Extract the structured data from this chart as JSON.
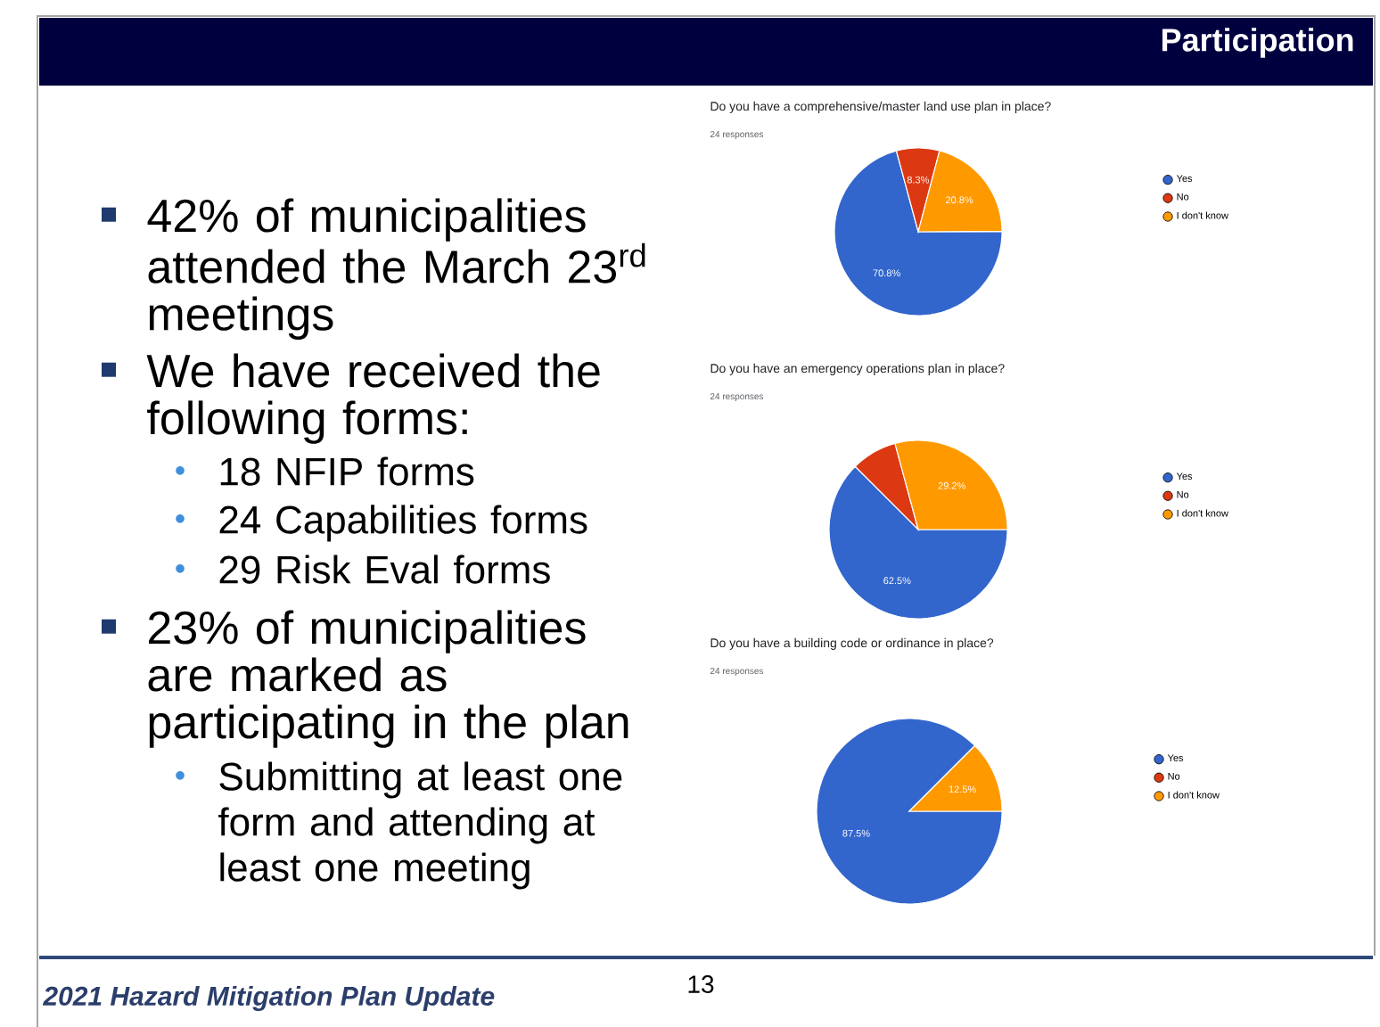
{
  "chart_data": [
    {
      "type": "other",
      "title": "Participation",
      "annotations": [
        "42% of municipalities attended the March 23$^{rd}$ meetings",
        "We have received the following forms:",
        "18 NFIP forms",
        "24 Capabilities forms",
        "29 Risk Eval forms",
        "23% of municipalities are marked as participating in the plan",
        "Submitting at least one form and attending at least one meeting",
        "2021 Hazard Mitigation Plan Update",
        "13"
      ]
    },
    {
      "type": "pie",
      "title": "Do you have a comprehensive/master land use plan in place?",
      "subtitle": "24 responses",
      "categories": [
        "Yes",
        "No",
        "I don't know"
      ],
      "values": [
        70.8,
        8.3,
        20.8
      ],
      "colors": [
        "#3366cc",
        "#dc3912",
        "#ff9900"
      ],
      "value_labels": [
        "70.8%",
        "8.3%",
        "20.8%"
      ],
      "legend": "right"
    },
    {
      "type": "pie",
      "title": "Do you have an emergency operations plan in place?",
      "subtitle": "24 responses",
      "categories": [
        "Yes",
        "No",
        "I don't know"
      ],
      "values": [
        62.5,
        8.3,
        29.2
      ],
      "colors": [
        "#3366cc",
        "#dc3912",
        "#ff9900"
      ],
      "value_labels": [
        "62.5%",
        null,
        "29.2%"
      ],
      "legend": "right"
    },
    {
      "type": "pie",
      "title": "Do you have a building code or ordinance in place?",
      "subtitle": "24 responses",
      "categories": [
        "Yes",
        "No",
        "I don't know"
      ],
      "values": [
        87.5,
        0,
        12.5
      ],
      "colors": [
        "#3366cc",
        "#dc3912",
        "#ff9900"
      ],
      "value_labels": [
        "87.5%",
        null,
        "12.5%"
      ],
      "legend": "right"
    }
  ]
}
